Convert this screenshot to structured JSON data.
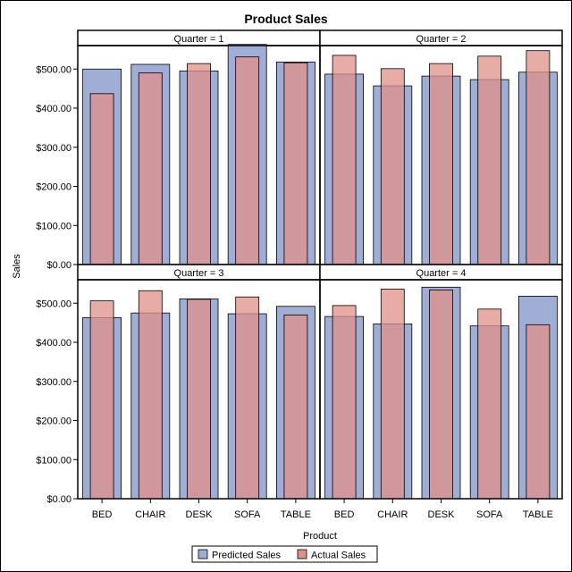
{
  "chart_data": {
    "type": "bar",
    "title": "Product Sales",
    "xlabel": "Product",
    "ylabel": "Sales",
    "ylim": [
      0,
      560
    ],
    "yticks": [
      "$0.00",
      "$100.00",
      "$200.00",
      "$300.00",
      "$400.00",
      "$500.00"
    ],
    "categories": [
      "BED",
      "CHAIR",
      "DESK",
      "SOFA",
      "TABLE"
    ],
    "legend": {
      "placement": "bottom",
      "entries": [
        {
          "name": "Predicted Sales",
          "color": "#a0aed6"
        },
        {
          "name": "Actual Sales",
          "color": "#e0908a"
        }
      ]
    },
    "panels": [
      {
        "label": "Quarter = 1",
        "series": [
          {
            "name": "Predicted Sales",
            "values": [
              500,
              512,
              495,
              563,
              518
            ]
          },
          {
            "name": "Actual Sales",
            "values": [
              437,
              490,
              514,
              531,
              516
            ]
          }
        ]
      },
      {
        "label": "Quarter = 2",
        "series": [
          {
            "name": "Predicted Sales",
            "values": [
              487,
              457,
              482,
              473,
              492
            ]
          },
          {
            "name": "Actual Sales",
            "values": [
              535,
              501,
              514,
              533,
              547
            ]
          }
        ]
      },
      {
        "label": "Quarter = 3",
        "series": [
          {
            "name": "Predicted Sales",
            "values": [
              463,
              475,
              511,
              473,
              492
            ]
          },
          {
            "name": "Actual Sales",
            "values": [
              506,
              532,
              510,
              516,
              470
            ]
          }
        ]
      },
      {
        "label": "Quarter = 4",
        "series": [
          {
            "name": "Predicted Sales",
            "values": [
              466,
              447,
              541,
              442,
              518
            ]
          },
          {
            "name": "Actual Sales",
            "values": [
              494,
              536,
              534,
              485,
              445
            ]
          }
        ]
      }
    ]
  }
}
